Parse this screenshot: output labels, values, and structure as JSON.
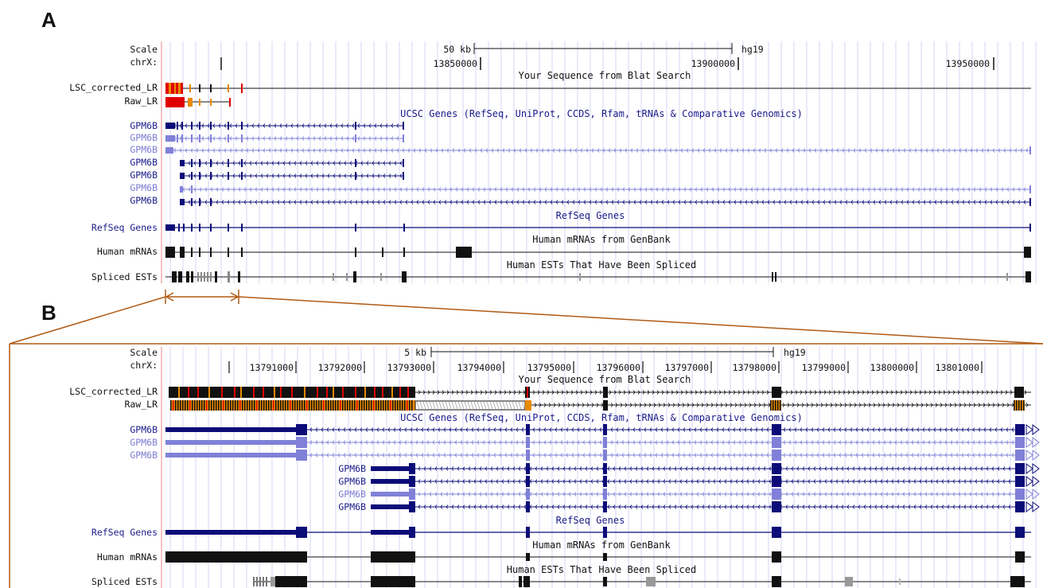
{
  "panel_a": {
    "letter": "A",
    "scale_label": "Scale",
    "chrom_label": "chrX:",
    "scale_bar_text": "50 kb",
    "assembly": "hg19",
    "positions": [
      "13850000",
      "13900000",
      "13950000"
    ],
    "blat_title": "Your Sequence from Blat Search",
    "blat_tracks": [
      "LSC_corrected_LR",
      "Raw_LR"
    ],
    "ucsc_title": "UCSC Genes (RefSeq, UniProt, CCDS, Rfam, tRNAs & Comparative Genomics)",
    "gene_rows": [
      "GPM6B",
      "GPM6B",
      "GPM6B",
      "GPM6B",
      "GPM6B",
      "GPM6B",
      "GPM6B"
    ],
    "refseq_title": "RefSeq Genes",
    "refseq_label": "RefSeq Genes",
    "mrna_title": "Human mRNAs from GenBank",
    "mrna_label": "Human mRNAs",
    "est_title": "Human ESTs That Have Been Spliced",
    "est_label": "Spliced ESTs"
  },
  "panel_b": {
    "letter": "B",
    "scale_label": "Scale",
    "chrom_label": "chrX:",
    "scale_bar_text": "5 kb",
    "assembly": "hg19",
    "positions": [
      "13791000",
      "13792000",
      "13793000",
      "13794000",
      "13795000",
      "13796000",
      "13797000",
      "13798000",
      "13799000",
      "13800000",
      "13801000"
    ],
    "blat_title": "Your Sequence from Blat Search",
    "blat_tracks": [
      "LSC_corrected_LR",
      "Raw_LR"
    ],
    "ucsc_title": "UCSC Genes (RefSeq, UniProt, CCDS, Rfam, tRNAs & Comparative Genomics)",
    "gene_rows_left": [
      "GPM6B",
      "GPM6B",
      "GPM6B"
    ],
    "gene_rows_inner": [
      "GPM6B",
      "GPM6B",
      "GPM6B",
      "GPM6B"
    ],
    "refseq_title": "RefSeq Genes",
    "refseq_label": "RefSeq Genes",
    "mrna_title": "Human mRNAs from GenBank",
    "mrna_label": "Human mRNAs",
    "est_title": "Human ESTs That Have Been Spliced",
    "est_label": "Spliced ESTs"
  },
  "colors": {
    "dark_blue": "#0c0c78",
    "light_blue": "#8080d8",
    "red": "#e00000",
    "orange": "#e88a00",
    "black": "#111111",
    "grid": "#d6d6f4",
    "zoom_brown": "#b05a14"
  }
}
